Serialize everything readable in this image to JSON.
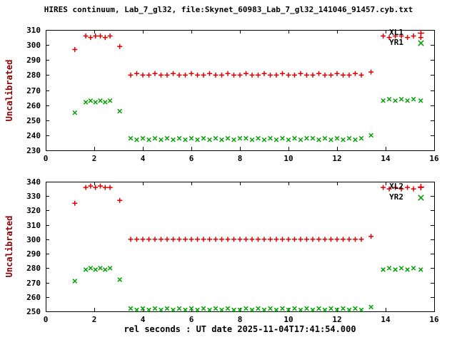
{
  "title": "HIRES continuum, Lab_7_gl32, file:Skynet_60983_Lab_7_gl32_141046_91457.cyb.txt",
  "xlabel": "rel seconds : UT date 2025-11-04T17:41:54.000",
  "colors": {
    "background": "#ffffff",
    "axis": "#000000",
    "ylabel": "#8b0000",
    "series_red": "#dd0000",
    "series_green": "#00a000"
  },
  "chart_data": [
    {
      "type": "scatter",
      "ylabel": "Uncalibrated",
      "xlim": [
        0,
        16
      ],
      "ylim": [
        230,
        310
      ],
      "xticks": [
        0,
        2,
        4,
        6,
        8,
        10,
        12,
        14,
        16
      ],
      "yticks": [
        230,
        240,
        250,
        260,
        270,
        280,
        290,
        300,
        310
      ],
      "grid": false,
      "legend_position": "inside top-right",
      "series": [
        {
          "name": "XL1",
          "marker": "plus",
          "color": "#dd0000",
          "points": [
            [
              1.2,
              297
            ],
            [
              1.65,
              306
            ],
            [
              1.85,
              305
            ],
            [
              2.05,
              306
            ],
            [
              2.25,
              306
            ],
            [
              2.45,
              305
            ],
            [
              2.65,
              306
            ],
            [
              3.05,
              299
            ],
            [
              3.5,
              280
            ],
            [
              3.75,
              281
            ],
            [
              4,
              280
            ],
            [
              4.25,
              280
            ],
            [
              4.5,
              281
            ],
            [
              4.75,
              280
            ],
            [
              5,
              280
            ],
            [
              5.25,
              281
            ],
            [
              5.5,
              280
            ],
            [
              5.75,
              280
            ],
            [
              6,
              281
            ],
            [
              6.25,
              280
            ],
            [
              6.5,
              280
            ],
            [
              6.75,
              281
            ],
            [
              7,
              280
            ],
            [
              7.25,
              280
            ],
            [
              7.5,
              281
            ],
            [
              7.75,
              280
            ],
            [
              8,
              280
            ],
            [
              8.25,
              281
            ],
            [
              8.5,
              280
            ],
            [
              8.75,
              280
            ],
            [
              9,
              281
            ],
            [
              9.25,
              280
            ],
            [
              9.5,
              280
            ],
            [
              9.75,
              281
            ],
            [
              10,
              280
            ],
            [
              10.25,
              280
            ],
            [
              10.5,
              281
            ],
            [
              10.75,
              280
            ],
            [
              11,
              280
            ],
            [
              11.25,
              281
            ],
            [
              11.5,
              280
            ],
            [
              11.75,
              280
            ],
            [
              12,
              281
            ],
            [
              12.25,
              280
            ],
            [
              12.5,
              280
            ],
            [
              12.75,
              281
            ],
            [
              13,
              280
            ],
            [
              13.4,
              282
            ],
            [
              13.9,
              306
            ],
            [
              14.15,
              305
            ],
            [
              14.4,
              306
            ],
            [
              14.65,
              306
            ],
            [
              14.9,
              305
            ],
            [
              15.15,
              306
            ],
            [
              15.45,
              305
            ]
          ]
        },
        {
          "name": "YR1",
          "marker": "cross",
          "color": "#00a000",
          "points": [
            [
              1.2,
              255
            ],
            [
              1.65,
              262
            ],
            [
              1.85,
              263
            ],
            [
              2.05,
              262
            ],
            [
              2.25,
              263
            ],
            [
              2.45,
              262
            ],
            [
              2.65,
              263
            ],
            [
              3.05,
              256
            ],
            [
              3.5,
              238
            ],
            [
              3.75,
              237
            ],
            [
              4,
              238
            ],
            [
              4.25,
              237
            ],
            [
              4.5,
              238
            ],
            [
              4.75,
              237
            ],
            [
              5,
              238
            ],
            [
              5.25,
              237
            ],
            [
              5.5,
              238
            ],
            [
              5.75,
              237
            ],
            [
              6,
              238
            ],
            [
              6.25,
              237
            ],
            [
              6.5,
              238
            ],
            [
              6.75,
              237
            ],
            [
              7,
              238
            ],
            [
              7.25,
              237
            ],
            [
              7.5,
              238
            ],
            [
              7.75,
              237
            ],
            [
              8,
              238
            ],
            [
              8.25,
              238
            ],
            [
              8.5,
              237
            ],
            [
              8.75,
              238
            ],
            [
              9,
              237
            ],
            [
              9.25,
              238
            ],
            [
              9.5,
              237
            ],
            [
              9.75,
              238
            ],
            [
              10,
              237
            ],
            [
              10.25,
              238
            ],
            [
              10.5,
              237
            ],
            [
              10.75,
              238
            ],
            [
              11,
              238
            ],
            [
              11.25,
              237
            ],
            [
              11.5,
              238
            ],
            [
              11.75,
              237
            ],
            [
              12,
              238
            ],
            [
              12.25,
              237
            ],
            [
              12.5,
              238
            ],
            [
              12.75,
              237
            ],
            [
              13,
              238
            ],
            [
              13.4,
              240
            ],
            [
              13.9,
              263
            ],
            [
              14.15,
              264
            ],
            [
              14.4,
              263
            ],
            [
              14.65,
              264
            ],
            [
              14.9,
              263
            ],
            [
              15.15,
              264
            ],
            [
              15.45,
              263
            ]
          ]
        }
      ]
    },
    {
      "type": "scatter",
      "ylabel": "Uncalibrated",
      "xlim": [
        0,
        16
      ],
      "ylim": [
        250,
        340
      ],
      "xticks": [
        0,
        2,
        4,
        6,
        8,
        10,
        12,
        14,
        16
      ],
      "yticks": [
        250,
        260,
        270,
        280,
        290,
        300,
        310,
        320,
        330,
        340
      ],
      "grid": false,
      "legend_position": "inside top-right",
      "series": [
        {
          "name": "XL2",
          "marker": "plus",
          "color": "#dd0000",
          "points": [
            [
              1.2,
              325
            ],
            [
              1.65,
              336
            ],
            [
              1.85,
              337
            ],
            [
              2.05,
              336
            ],
            [
              2.25,
              337
            ],
            [
              2.45,
              336
            ],
            [
              2.65,
              336
            ],
            [
              3.05,
              327
            ],
            [
              3.5,
              300
            ],
            [
              3.75,
              300
            ],
            [
              4,
              300
            ],
            [
              4.25,
              300
            ],
            [
              4.5,
              300
            ],
            [
              4.75,
              300
            ],
            [
              5,
              300
            ],
            [
              5.25,
              300
            ],
            [
              5.5,
              300
            ],
            [
              5.75,
              300
            ],
            [
              6,
              300
            ],
            [
              6.25,
              300
            ],
            [
              6.5,
              300
            ],
            [
              6.75,
              300
            ],
            [
              7,
              300
            ],
            [
              7.25,
              300
            ],
            [
              7.5,
              300
            ],
            [
              7.75,
              300
            ],
            [
              8,
              300
            ],
            [
              8.25,
              300
            ],
            [
              8.5,
              300
            ],
            [
              8.75,
              300
            ],
            [
              9,
              300
            ],
            [
              9.25,
              300
            ],
            [
              9.5,
              300
            ],
            [
              9.75,
              300
            ],
            [
              10,
              300
            ],
            [
              10.25,
              300
            ],
            [
              10.5,
              300
            ],
            [
              10.75,
              300
            ],
            [
              11,
              300
            ],
            [
              11.25,
              300
            ],
            [
              11.5,
              300
            ],
            [
              11.75,
              300
            ],
            [
              12,
              300
            ],
            [
              12.25,
              300
            ],
            [
              12.5,
              300
            ],
            [
              12.75,
              300
            ],
            [
              13,
              300
            ],
            [
              13.4,
              302
            ],
            [
              13.9,
              336
            ],
            [
              14.15,
              335
            ],
            [
              14.4,
              336
            ],
            [
              14.65,
              335
            ],
            [
              14.9,
              336
            ],
            [
              15.15,
              335
            ],
            [
              15.45,
              336
            ]
          ]
        },
        {
          "name": "YR2",
          "marker": "cross",
          "color": "#00a000",
          "points": [
            [
              1.2,
              271
            ],
            [
              1.65,
              279
            ],
            [
              1.85,
              280
            ],
            [
              2.05,
              279
            ],
            [
              2.25,
              280
            ],
            [
              2.45,
              279
            ],
            [
              2.65,
              280
            ],
            [
              3.05,
              272
            ],
            [
              3.5,
              252
            ],
            [
              3.75,
              251
            ],
            [
              4,
              252
            ],
            [
              4.25,
              251
            ],
            [
              4.5,
              252
            ],
            [
              4.75,
              251
            ],
            [
              5,
              252
            ],
            [
              5.25,
              251
            ],
            [
              5.5,
              252
            ],
            [
              5.75,
              251
            ],
            [
              6,
              252
            ],
            [
              6.25,
              251
            ],
            [
              6.5,
              252
            ],
            [
              6.75,
              251
            ],
            [
              7,
              252
            ],
            [
              7.25,
              251
            ],
            [
              7.5,
              252
            ],
            [
              7.75,
              251
            ],
            [
              8,
              251
            ],
            [
              8.25,
              252
            ],
            [
              8.5,
              251
            ],
            [
              8.75,
              252
            ],
            [
              9,
              251
            ],
            [
              9.25,
              252
            ],
            [
              9.5,
              251
            ],
            [
              9.75,
              252
            ],
            [
              10,
              251
            ],
            [
              10.25,
              252
            ],
            [
              10.5,
              251
            ],
            [
              10.75,
              252
            ],
            [
              11,
              251
            ],
            [
              11.25,
              252
            ],
            [
              11.5,
              251
            ],
            [
              11.75,
              252
            ],
            [
              12,
              251
            ],
            [
              12.25,
              252
            ],
            [
              12.5,
              251
            ],
            [
              12.75,
              252
            ],
            [
              13,
              251
            ],
            [
              13.4,
              253
            ],
            [
              13.9,
              279
            ],
            [
              14.15,
              280
            ],
            [
              14.4,
              279
            ],
            [
              14.65,
              280
            ],
            [
              14.9,
              279
            ],
            [
              15.15,
              280
            ],
            [
              15.45,
              279
            ]
          ]
        }
      ]
    }
  ]
}
